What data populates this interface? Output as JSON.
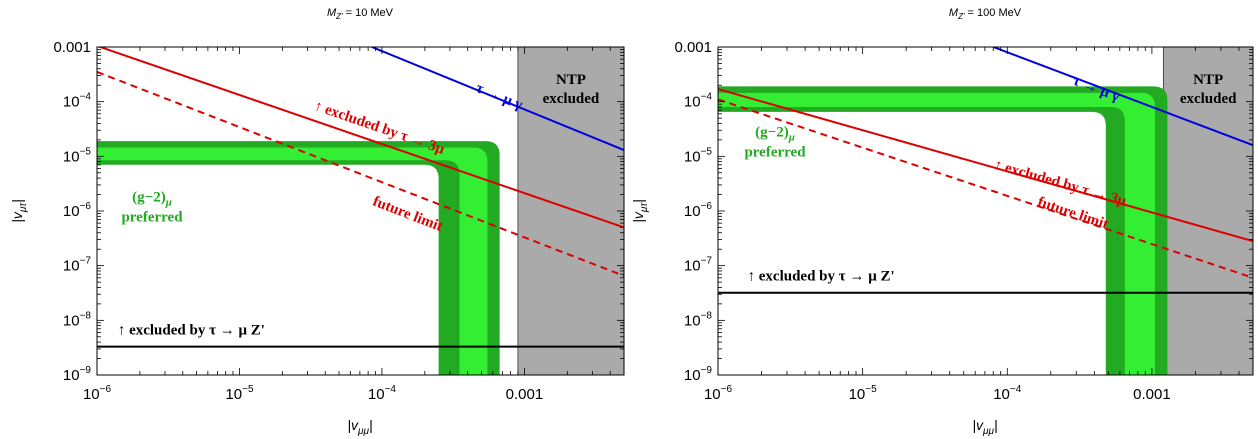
{
  "chart_data": [
    {
      "type": "line",
      "title": "M_Z' = 10 MeV",
      "title_main": "M",
      "title_sub": "Z'",
      "title_rest": " = 10 MeV",
      "xlabel": "|v_μμ|",
      "ylabel": "|v_μτ|",
      "xlabel_main": "|v",
      "xlabel_sub": "μμ",
      "xlabel_end": "|",
      "ylabel_main": "|v",
      "ylabel_sub": "μτ",
      "ylabel_end": "|",
      "x_scale": "log",
      "y_scale": "log",
      "xlim": [
        1e-06,
        0.005
      ],
      "ylim": [
        1e-09,
        0.001
      ],
      "x_ticks": [
        {
          "value": 1e-06,
          "base": "10",
          "exp": "−6"
        },
        {
          "value": 1e-05,
          "base": "10",
          "exp": "−5"
        },
        {
          "value": 0.0001,
          "base": "10",
          "exp": "−4"
        },
        {
          "value": 0.001,
          "label": "0.001"
        }
      ],
      "y_ticks": [
        {
          "value": 1e-09,
          "base": "10",
          "exp": "−9"
        },
        {
          "value": 1e-08,
          "base": "10",
          "exp": "−8"
        },
        {
          "value": 1e-07,
          "base": "10",
          "exp": "−7"
        },
        {
          "value": 1e-06,
          "base": "10",
          "exp": "−6"
        },
        {
          "value": 1e-05,
          "base": "10",
          "exp": "−5"
        },
        {
          "value": 0.0001,
          "base": "10",
          "exp": "−4"
        },
        {
          "value": 0.001,
          "label": "0.001"
        }
      ],
      "ntp_region": {
        "x_min": 0.0009,
        "x_max": 0.005,
        "color": "#aaaaaa",
        "label_line1": "NTP",
        "label_line2": "excluded"
      },
      "band": {
        "outer": {
          "x_edge": 0.00063,
          "y_lower": 7e-06,
          "y_upper": 1.9e-05,
          "x_left": 0.00025,
          "x_right": 0.00067,
          "color": "#22aa22"
        },
        "inner": {
          "x_edge": 0.00045,
          "y_lower": 8.5e-06,
          "y_upper": 1.45e-05,
          "x_left": 0.00035,
          "x_right": 0.00055,
          "color": "#33ee33"
        },
        "label_line1": "(g−2)",
        "label_sub": "μ",
        "label_line2": "preferred"
      },
      "lines": [
        {
          "name": "tau_to_mu_gamma",
          "color": "#0000dd",
          "dash": false,
          "points": [
            [
              8.5e-05,
              0.001
            ],
            [
              0.005,
              1.3e-05
            ]
          ],
          "label": "τ → μ γ",
          "label_at": [
            0.00045,
            0.000155
          ]
        },
        {
          "name": "tau_to_3mu",
          "color": "#dd0000",
          "dash": false,
          "points": [
            [
              1e-06,
              0.00105
            ],
            [
              0.005,
              5e-07
            ]
          ],
          "label": "↑ excluded by τ → 3μ",
          "label_at": [
            3.3e-05,
            7.2e-05
          ]
        },
        {
          "name": "future_limit",
          "color": "#dd0000",
          "dash": true,
          "points": [
            [
              1e-06,
              0.00035
            ],
            [
              0.005,
              6.5e-08
            ]
          ],
          "label": "future limit",
          "label_at": [
            8.5e-05,
            1.3e-06
          ]
        },
        {
          "name": "tau_to_mu_Zprime",
          "color": "#000000",
          "dash": false,
          "points": [
            [
              1e-06,
              3.3e-09
            ],
            [
              0.005,
              3.3e-09
            ]
          ],
          "label": "↑ excluded by τ → μ Z'",
          "label_at": [
            1.4e-06,
            5.5e-09
          ]
        }
      ]
    },
    {
      "type": "line",
      "title": "M_Z' = 100 MeV",
      "title_main": "M",
      "title_sub": "Z'",
      "title_rest": " = 100 MeV",
      "xlabel": "|v_μμ|",
      "ylabel": "|v_μτ|",
      "xlabel_main": "|v",
      "xlabel_sub": "μμ",
      "xlabel_end": "|",
      "ylabel_main": "|v",
      "ylabel_sub": "μτ",
      "ylabel_end": "|",
      "x_scale": "log",
      "y_scale": "log",
      "xlim": [
        1e-06,
        0.005
      ],
      "ylim": [
        1e-09,
        0.001
      ],
      "x_ticks": [
        {
          "value": 1e-06,
          "base": "10",
          "exp": "−6"
        },
        {
          "value": 1e-05,
          "base": "10",
          "exp": "−5"
        },
        {
          "value": 0.0001,
          "base": "10",
          "exp": "−4"
        },
        {
          "value": 0.001,
          "label": "0.001"
        }
      ],
      "y_ticks": [
        {
          "value": 1e-09,
          "base": "10",
          "exp": "−9"
        },
        {
          "value": 1e-08,
          "base": "10",
          "exp": "−8"
        },
        {
          "value": 1e-07,
          "base": "10",
          "exp": "−7"
        },
        {
          "value": 1e-06,
          "base": "10",
          "exp": "−6"
        },
        {
          "value": 1e-05,
          "base": "10",
          "exp": "−5"
        },
        {
          "value": 0.0001,
          "base": "10",
          "exp": "−4"
        },
        {
          "value": 0.001,
          "label": "0.001"
        }
      ],
      "ntp_region": {
        "x_min": 0.0012,
        "x_max": 0.005,
        "color": "#aaaaaa",
        "label_line1": "NTP",
        "label_line2": "excluded"
      },
      "band": {
        "outer": {
          "x_edge": 0.00125,
          "y_lower": 6.5e-05,
          "y_upper": 0.00019,
          "x_left": 0.00048,
          "x_right": 0.00128,
          "color": "#22aa22"
        },
        "inner": {
          "x_edge": 0.0009,
          "y_lower": 8e-05,
          "y_upper": 0.000145,
          "x_left": 0.00065,
          "x_right": 0.00105,
          "color": "#33ee33"
        },
        "label_line1": "(g−2)",
        "label_sub": "μ",
        "label_line2": "preferred"
      },
      "lines": [
        {
          "name": "tau_to_mu_gamma",
          "color": "#0000dd",
          "dash": false,
          "points": [
            [
              8e-05,
              0.001
            ],
            [
              0.005,
              1.6e-05
            ]
          ],
          "label": "τ → μ γ",
          "label_at": [
            0.00028,
            0.00021
          ]
        },
        {
          "name": "tau_to_3mu",
          "color": "#dd0000",
          "dash": false,
          "points": [
            [
              1e-06,
              0.00017
            ],
            [
              0.005,
              2.8e-07
            ]
          ],
          "label": "↑ excluded by τ → 3μ",
          "label_at": [
            8e-05,
            6e-06
          ]
        },
        {
          "name": "future_limit",
          "color": "#dd0000",
          "dash": true,
          "points": [
            [
              1e-06,
              0.00011
            ],
            [
              0.005,
              6e-08
            ]
          ],
          "label": "future limit",
          "label_at": [
            0.00016,
            1.25e-06
          ]
        },
        {
          "name": "tau_to_mu_Zprime",
          "color": "#000000",
          "dash": false,
          "points": [
            [
              1e-06,
              3.2e-08
            ],
            [
              0.005,
              3.2e-08
            ]
          ],
          "label": "↑ excluded by τ → μ Z'",
          "label_at": [
            1.6e-06,
            5.4e-08
          ]
        }
      ]
    }
  ]
}
